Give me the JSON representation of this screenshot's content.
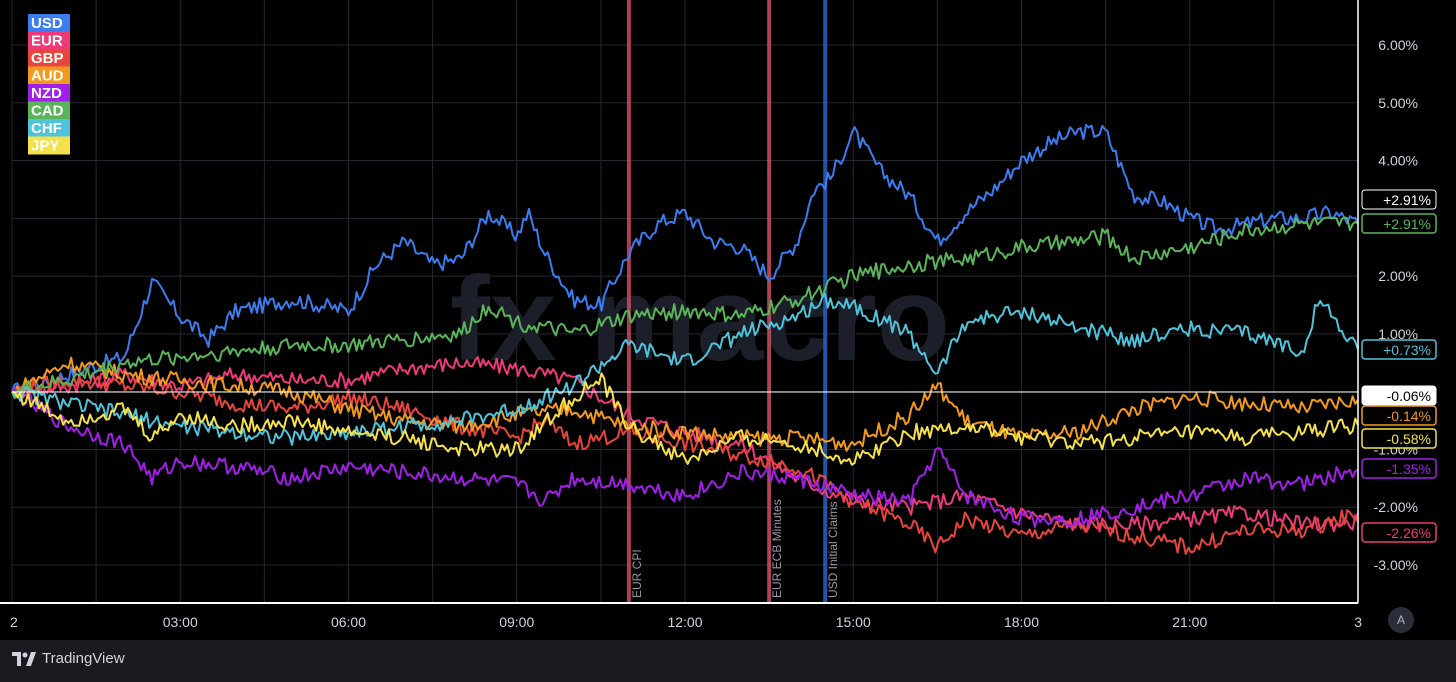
{
  "app": {
    "brand": "TradingView",
    "auto_scale_label": "A",
    "watermark": "fx macro"
  },
  "chart_data": {
    "type": "line",
    "x_ticks": [
      "2",
      "03:00",
      "06:00",
      "09:00",
      "12:00",
      "15:00",
      "18:00",
      "21:00",
      "3"
    ],
    "y_ticks": [
      "6.00%",
      "5.00%",
      "4.00%",
      "2.00%",
      "1.00%",
      "-1.00%",
      "-2.00%",
      "-3.00%"
    ],
    "ylim": [
      -3.6,
      6.6
    ],
    "xlim": [
      0,
      24
    ],
    "grid": true,
    "legend_position": "top-left",
    "events": [
      {
        "label": "EUR CPI",
        "time": 11.0,
        "color": "#e0566e"
      },
      {
        "label": "EUR ECB Minutes",
        "time": 13.5,
        "color": "#e0566e"
      },
      {
        "label": "USD Initial Claims",
        "time": 14.5,
        "color": "#2f6fe0"
      }
    ],
    "series": [
      {
        "name": "USD",
        "color": "#3b7cf0",
        "last_label": "+2.91%",
        "points": [
          [
            0,
            0
          ],
          [
            1,
            0.3
          ],
          [
            2,
            0.6
          ],
          [
            2.5,
            1.9
          ],
          [
            3,
            1.3
          ],
          [
            3.5,
            0.9
          ],
          [
            4,
            1.4
          ],
          [
            5,
            1.6
          ],
          [
            6,
            1.4
          ],
          [
            6.5,
            2.2
          ],
          [
            7,
            2.6
          ],
          [
            7.5,
            2.2
          ],
          [
            8,
            2.3
          ],
          [
            8.5,
            3.1
          ],
          [
            9,
            2.7
          ],
          [
            9.2,
            3.1
          ],
          [
            9.5,
            2.4
          ],
          [
            10,
            1.6
          ],
          [
            10.5,
            1.5
          ],
          [
            11,
            2.4
          ],
          [
            11.5,
            2.9
          ],
          [
            12,
            3.1
          ],
          [
            12.5,
            2.6
          ],
          [
            13,
            2.5
          ],
          [
            13.5,
            2.0
          ],
          [
            14,
            2.6
          ],
          [
            14.3,
            3.5
          ],
          [
            14.6,
            3.7
          ],
          [
            15,
            4.5
          ],
          [
            15.5,
            3.8
          ],
          [
            16,
            3.4
          ],
          [
            16.5,
            2.6
          ],
          [
            17,
            3.1
          ],
          [
            17.5,
            3.5
          ],
          [
            18,
            4.0
          ],
          [
            18.5,
            4.3
          ],
          [
            19,
            4.5
          ],
          [
            19.5,
            4.5
          ],
          [
            20,
            3.4
          ],
          [
            20.5,
            3.3
          ],
          [
            21,
            3.0
          ],
          [
            21.5,
            2.8
          ],
          [
            22,
            2.9
          ],
          [
            22.5,
            3.0
          ],
          [
            23,
            3.0
          ],
          [
            23.5,
            3.1
          ],
          [
            24,
            2.91
          ]
        ]
      },
      {
        "name": "EUR",
        "color": "#ee3a78",
        "last_label": "-2.26%",
        "points": [
          [
            0,
            0
          ],
          [
            1,
            0.1
          ],
          [
            2,
            0.3
          ],
          [
            3,
            0.1
          ],
          [
            4,
            0.3
          ],
          [
            5,
            0.2
          ],
          [
            6,
            0.2
          ],
          [
            7,
            0.4
          ],
          [
            8,
            0.5
          ],
          [
            9,
            0.4
          ],
          [
            10,
            0.2
          ],
          [
            11,
            -0.4
          ],
          [
            12,
            -0.7
          ],
          [
            13,
            -0.9
          ],
          [
            14,
            -1.5
          ],
          [
            15,
            -1.9
          ],
          [
            16,
            -2.0
          ],
          [
            17,
            -1.8
          ],
          [
            18,
            -2.1
          ],
          [
            19,
            -2.3
          ],
          [
            20,
            -2.3
          ],
          [
            21,
            -2.2
          ],
          [
            22,
            -2.1
          ],
          [
            23,
            -2.3
          ],
          [
            24,
            -2.26
          ]
        ]
      },
      {
        "name": "GBP",
        "color": "#e8453c",
        "last_label": "",
        "points": [
          [
            0,
            0
          ],
          [
            1,
            0.2
          ],
          [
            2,
            0.1
          ],
          [
            3,
            0
          ],
          [
            4,
            -0.2
          ],
          [
            5,
            -0.3
          ],
          [
            6,
            -0.1
          ],
          [
            7,
            -0.3
          ],
          [
            8,
            -0.6
          ],
          [
            9,
            -0.8
          ],
          [
            9.5,
            -0.5
          ],
          [
            10,
            -0.9
          ],
          [
            11,
            -0.7
          ],
          [
            12,
            -0.9
          ],
          [
            13,
            -1.1
          ],
          [
            14,
            -1.3
          ],
          [
            15,
            -1.9
          ],
          [
            16,
            -2.3
          ],
          [
            16.5,
            -2.7
          ],
          [
            17,
            -2.2
          ],
          [
            18,
            -2.5
          ],
          [
            19,
            -2.3
          ],
          [
            20,
            -2.5
          ],
          [
            21,
            -2.7
          ],
          [
            22,
            -2.4
          ],
          [
            23,
            -2.4
          ],
          [
            24,
            -2.1
          ]
        ]
      },
      {
        "name": "AUD",
        "color": "#f29a1f",
        "last_label": "-0.14%",
        "points": [
          [
            0,
            0
          ],
          [
            1,
            0.5
          ],
          [
            2,
            0.3
          ],
          [
            3,
            0.2
          ],
          [
            4,
            0.1
          ],
          [
            5,
            0
          ],
          [
            6,
            -0.3
          ],
          [
            7,
            -0.5
          ],
          [
            8,
            -0.6
          ],
          [
            9,
            -0.4
          ],
          [
            10,
            -0.3
          ],
          [
            11,
            -0.6
          ],
          [
            12,
            -0.7
          ],
          [
            13,
            -0.8
          ],
          [
            14,
            -0.8
          ],
          [
            15,
            -0.9
          ],
          [
            16,
            -0.4
          ],
          [
            16.5,
            0.1
          ],
          [
            17,
            -0.5
          ],
          [
            18,
            -0.8
          ],
          [
            19,
            -0.7
          ],
          [
            20,
            -0.3
          ],
          [
            21,
            -0.1
          ],
          [
            22,
            -0.2
          ],
          [
            23,
            -0.3
          ],
          [
            24,
            -0.14
          ]
        ]
      },
      {
        "name": "NZD",
        "color": "#a020e8",
        "last_label": "-1.35%",
        "points": [
          [
            0,
            0
          ],
          [
            1,
            -0.6
          ],
          [
            2,
            -0.9
          ],
          [
            2.5,
            -1.5
          ],
          [
            3,
            -1.2
          ],
          [
            4,
            -1.3
          ],
          [
            5,
            -1.5
          ],
          [
            6,
            -1.3
          ],
          [
            7,
            -1.4
          ],
          [
            8,
            -1.5
          ],
          [
            9,
            -1.6
          ],
          [
            9.5,
            -1.9
          ],
          [
            10,
            -1.5
          ],
          [
            11,
            -1.6
          ],
          [
            12,
            -1.8
          ],
          [
            13,
            -1.4
          ],
          [
            14,
            -1.5
          ],
          [
            15,
            -1.8
          ],
          [
            16,
            -1.9
          ],
          [
            16.5,
            -1.0
          ],
          [
            17,
            -1.8
          ],
          [
            18,
            -2.2
          ],
          [
            19,
            -2.2
          ],
          [
            20,
            -2.0
          ],
          [
            21,
            -1.8
          ],
          [
            22,
            -1.5
          ],
          [
            23,
            -1.6
          ],
          [
            24,
            -1.35
          ]
        ]
      },
      {
        "name": "CAD",
        "color": "#5ab55a",
        "last_label": "+2.91%",
        "points": [
          [
            0,
            0
          ],
          [
            1,
            0.2
          ],
          [
            2,
            0.5
          ],
          [
            3,
            0.6
          ],
          [
            4,
            0.7
          ],
          [
            5,
            0.8
          ],
          [
            6,
            0.8
          ],
          [
            7,
            0.9
          ],
          [
            8,
            1.0
          ],
          [
            8.5,
            1.5
          ],
          [
            9,
            1.2
          ],
          [
            10,
            1.0
          ],
          [
            11,
            1.3
          ],
          [
            12,
            1.4
          ],
          [
            13,
            1.3
          ],
          [
            14,
            1.6
          ],
          [
            15,
            2.0
          ],
          [
            16,
            2.2
          ],
          [
            17,
            2.3
          ],
          [
            18,
            2.5
          ],
          [
            19,
            2.6
          ],
          [
            19.5,
            2.7
          ],
          [
            20,
            2.3
          ],
          [
            21,
            2.5
          ],
          [
            22,
            2.8
          ],
          [
            23,
            2.9
          ],
          [
            24,
            2.91
          ]
        ]
      },
      {
        "name": "CHF",
        "color": "#4ec3da",
        "last_label": "+0.73%",
        "points": [
          [
            0,
            0
          ],
          [
            1,
            -0.2
          ],
          [
            2,
            -0.4
          ],
          [
            3,
            -0.6
          ],
          [
            4,
            -0.7
          ],
          [
            5,
            -0.8
          ],
          [
            6,
            -0.7
          ],
          [
            7,
            -0.6
          ],
          [
            8,
            -0.5
          ],
          [
            9,
            -0.3
          ],
          [
            10,
            0.1
          ],
          [
            11,
            0.8
          ],
          [
            12,
            0.5
          ],
          [
            13,
            1.0
          ],
          [
            14,
            1.3
          ],
          [
            14.5,
            1.6
          ],
          [
            15,
            1.5
          ],
          [
            16,
            1.0
          ],
          [
            16.5,
            0.3
          ],
          [
            17,
            1.2
          ],
          [
            18,
            1.4
          ],
          [
            19,
            1.1
          ],
          [
            20,
            0.9
          ],
          [
            21,
            1.1
          ],
          [
            22,
            1.0
          ],
          [
            23,
            0.7
          ],
          [
            23.3,
            1.6
          ],
          [
            24,
            0.73
          ]
        ]
      },
      {
        "name": "JPY",
        "color": "#f5e14a",
        "last_label": "-0.58%",
        "points": [
          [
            0,
            0
          ],
          [
            1,
            -0.5
          ],
          [
            2,
            -0.3
          ],
          [
            2.5,
            -0.8
          ],
          [
            3,
            -0.4
          ],
          [
            4,
            -0.6
          ],
          [
            5,
            -0.5
          ],
          [
            6,
            -0.7
          ],
          [
            7,
            -0.8
          ],
          [
            8,
            -1.0
          ],
          [
            9,
            -1.0
          ],
          [
            10,
            -0.1
          ],
          [
            10.5,
            0.2
          ],
          [
            11,
            -0.6
          ],
          [
            12,
            -1.2
          ],
          [
            13,
            -0.8
          ],
          [
            14,
            -0.9
          ],
          [
            15,
            -1.2
          ],
          [
            16,
            -0.7
          ],
          [
            17,
            -0.6
          ],
          [
            18,
            -0.8
          ],
          [
            19,
            -0.9
          ],
          [
            20,
            -0.8
          ],
          [
            21,
            -0.7
          ],
          [
            22,
            -0.8
          ],
          [
            23,
            -0.7
          ],
          [
            24,
            -0.58
          ]
        ]
      }
    ],
    "current_value_label": "-0.06%"
  }
}
